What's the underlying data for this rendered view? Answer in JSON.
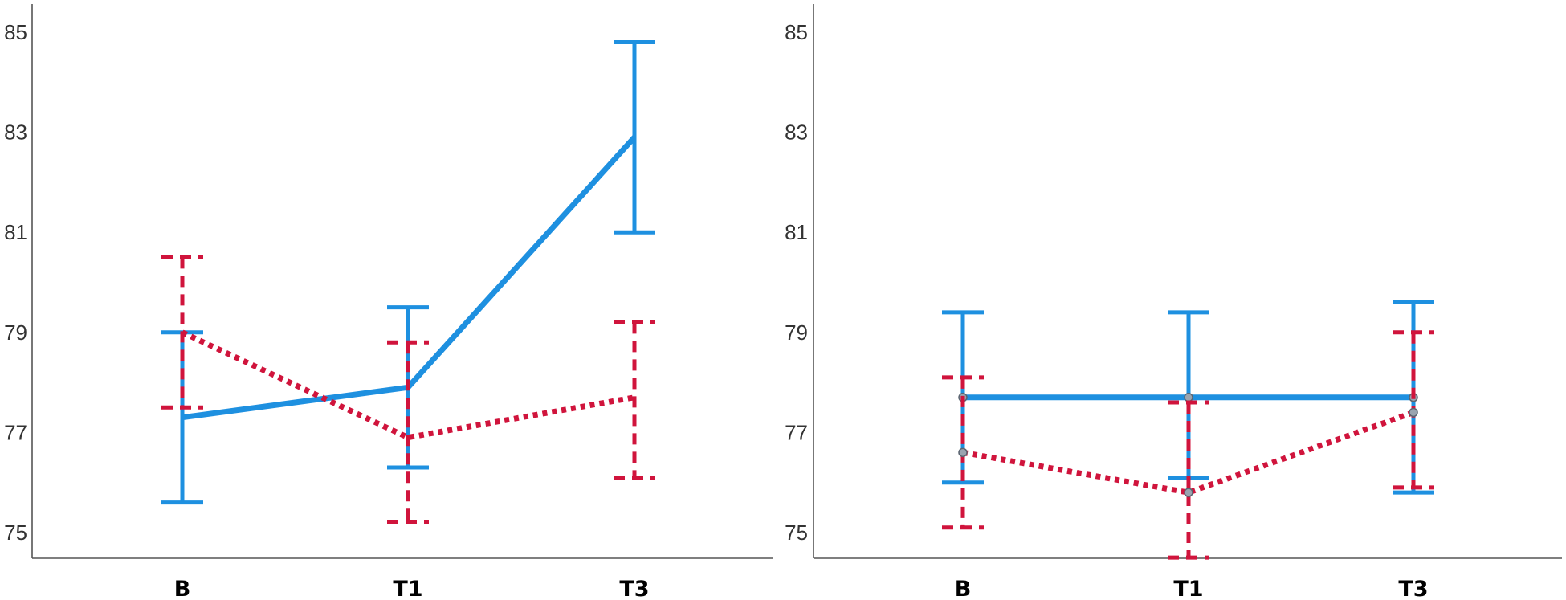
{
  "chart_data": [
    {
      "type": "line",
      "categories": [
        "B",
        "T1",
        "T3"
      ],
      "yticks": [
        "75",
        "77",
        "79",
        "81",
        "83",
        "85"
      ],
      "ylim": [
        74.5,
        85.5
      ],
      "grid": false,
      "series": [
        {
          "style": "solid",
          "color": "#1e90e0",
          "values": [
            77.3,
            77.9,
            82.9
          ],
          "error_low": [
            75.6,
            76.3,
            81.0
          ],
          "error_high": [
            79.0,
            79.5,
            84.8
          ]
        },
        {
          "style": "dotted",
          "color": "#d0143c",
          "values": [
            79.0,
            76.9,
            77.7
          ],
          "error_low": [
            77.5,
            75.2,
            76.1
          ],
          "error_high": [
            80.5,
            78.8,
            79.2
          ]
        }
      ]
    },
    {
      "type": "line",
      "categories": [
        "B",
        "T1",
        "T3"
      ],
      "yticks": [
        "75",
        "77",
        "79",
        "81",
        "83",
        "85"
      ],
      "ylim": [
        74.5,
        85.5
      ],
      "grid": false,
      "series": [
        {
          "style": "solid",
          "color": "#1e90e0",
          "values": [
            77.7,
            77.7,
            77.7
          ],
          "error_low": [
            76.0,
            76.1,
            75.8
          ],
          "error_high": [
            79.4,
            79.4,
            79.6
          ]
        },
        {
          "style": "dotted",
          "color": "#d0143c",
          "values": [
            76.6,
            75.8,
            77.4
          ],
          "error_low": [
            75.1,
            74.5,
            75.9
          ],
          "error_high": [
            78.1,
            77.6,
            79.0
          ]
        }
      ]
    }
  ]
}
